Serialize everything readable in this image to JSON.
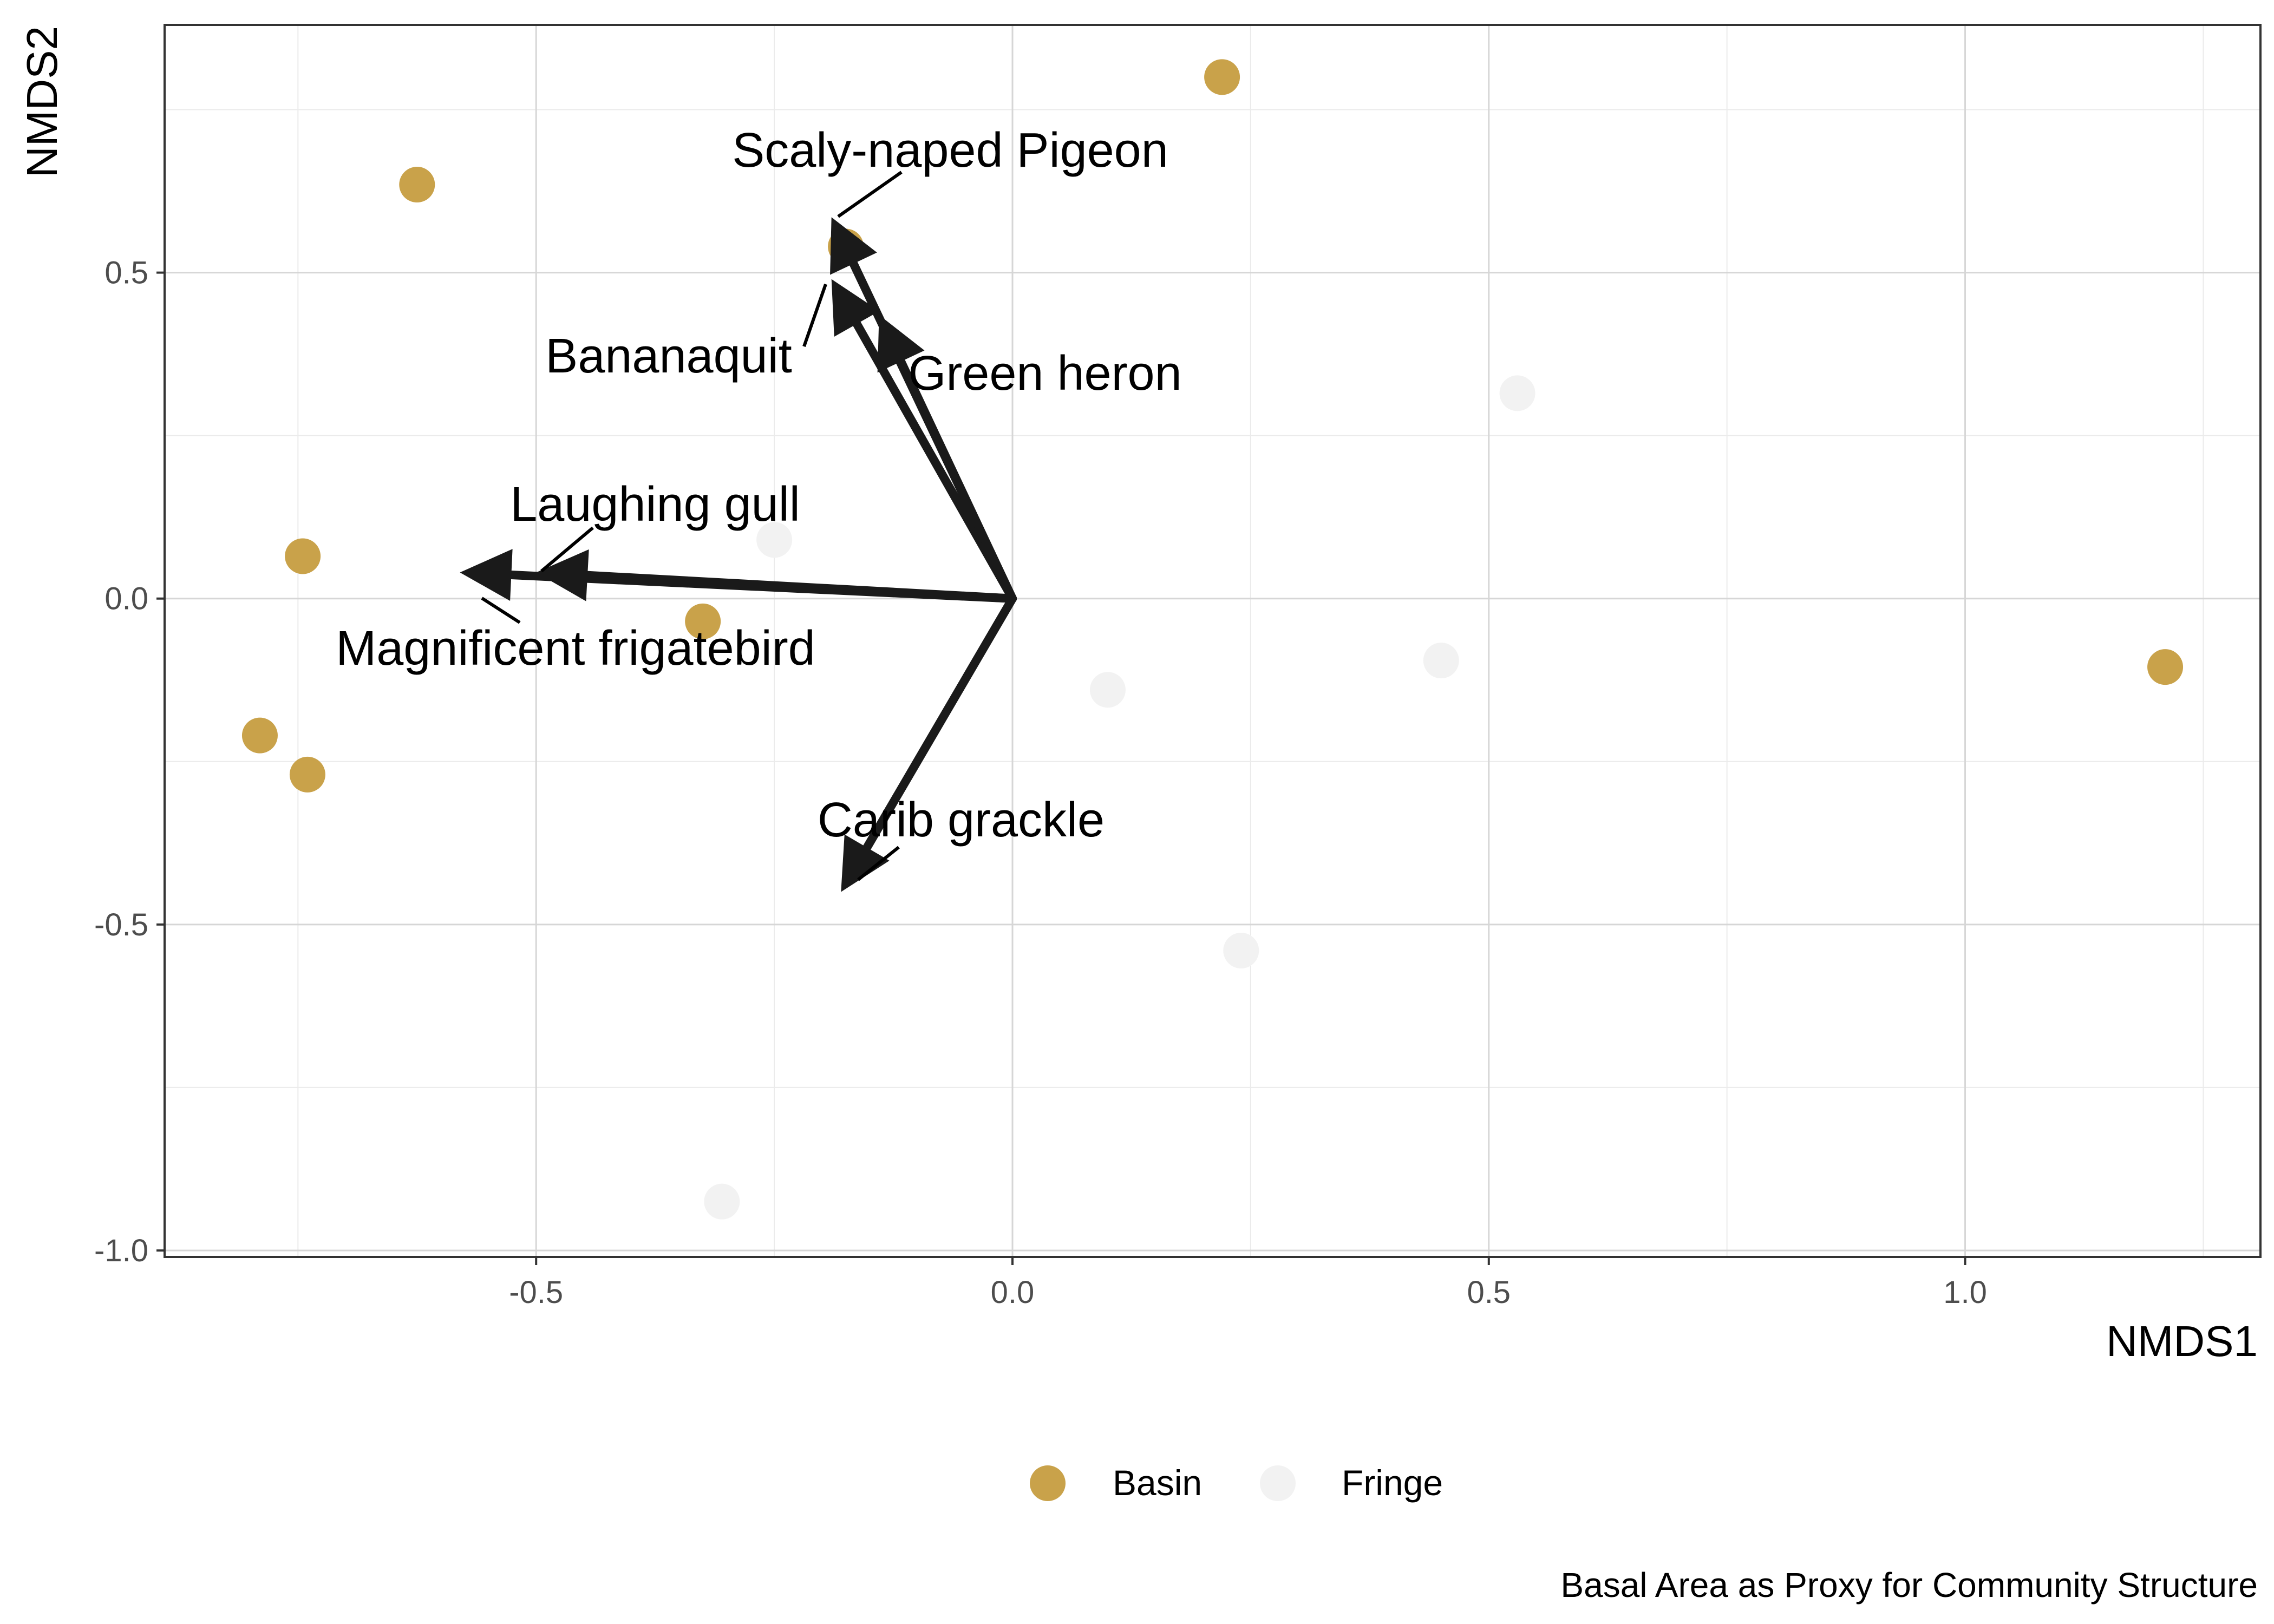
{
  "chart_data": {
    "type": "scatter",
    "title": "",
    "caption": "Basal Area as Proxy for Community Structure",
    "xlabel": "NMDS1",
    "ylabel": "NMDS2",
    "xlim": [
      -0.89,
      1.31
    ],
    "ylim": [
      -1.01,
      0.88
    ],
    "x_ticks": [
      -0.5,
      0.0,
      0.5,
      1.0
    ],
    "x_tick_labels": [
      "-0.5",
      "0.0",
      "0.5",
      "1.0"
    ],
    "y_ticks": [
      -1.0,
      -0.5,
      0.0,
      0.5
    ],
    "y_tick_labels": [
      "-1.0",
      "-0.5",
      "0.0",
      "0.5"
    ],
    "grid": true,
    "legend_position": "bottom",
    "series": [
      {
        "name": "Basin",
        "color": "#c9a24a",
        "points": [
          {
            "x": 0.22,
            "y": 0.8
          },
          {
            "x": -0.625,
            "y": 0.635
          },
          {
            "x": -0.175,
            "y": 0.54
          },
          {
            "x": -0.745,
            "y": 0.065
          },
          {
            "x": -0.325,
            "y": -0.035
          },
          {
            "x": -0.79,
            "y": -0.21
          },
          {
            "x": -0.74,
            "y": -0.27
          },
          {
            "x": 1.21,
            "y": -0.105
          }
        ]
      },
      {
        "name": "Fringe",
        "color": "#f2f2f2",
        "points": [
          {
            "x": 0.53,
            "y": 0.315
          },
          {
            "x": -0.25,
            "y": 0.09
          },
          {
            "x": 0.1,
            "y": -0.14
          },
          {
            "x": 0.45,
            "y": -0.095
          },
          {
            "x": 0.24,
            "y": -0.54
          },
          {
            "x": -0.305,
            "y": -0.925
          }
        ]
      }
    ],
    "vectors": [
      {
        "label": "Scaly-naped Pigeon",
        "x": -0.19,
        "y": 0.585
      },
      {
        "label": "Bananaquit",
        "x": -0.19,
        "y": 0.49
      },
      {
        "label": "Green heron",
        "x": -0.14,
        "y": 0.435
      },
      {
        "label": "Laughing gull",
        "x": -0.5,
        "y": 0.04
      },
      {
        "label": "Magnificent frigatebird",
        "x": -0.58,
        "y": 0.04
      },
      {
        "label": "Carib grackle",
        "x": -0.18,
        "y": -0.45
      }
    ],
    "vector_color": "#1a1a1a"
  }
}
